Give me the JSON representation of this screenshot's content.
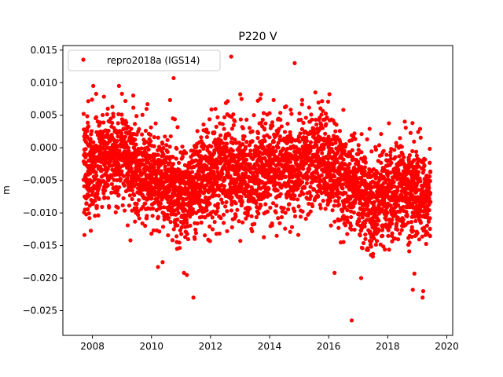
{
  "chart_data": {
    "type": "scatter",
    "title": "P220 V",
    "xlabel": "",
    "ylabel": "m",
    "xlim": [
      2007.0,
      2020.2
    ],
    "ylim": [
      -0.0288,
      0.0157
    ],
    "xticks": [
      2008,
      2010,
      2012,
      2014,
      2016,
      2018,
      2020
    ],
    "xtick_labels": [
      "2008",
      "2010",
      "2012",
      "2014",
      "2016",
      "2018",
      "2020"
    ],
    "yticks": [
      0.015,
      0.01,
      0.005,
      0.0,
      -0.005,
      -0.01,
      -0.015,
      -0.02,
      -0.025
    ],
    "ytick_labels": [
      "0.015",
      "0.010",
      "0.005",
      "0.000",
      "−0.005",
      "−0.010",
      "−0.015",
      "−0.020",
      "−0.025"
    ],
    "grid": false,
    "legend_position": "top-left",
    "series": [
      {
        "name": "repro2018a (IGS14)",
        "color": "#ff0000",
        "marker": "circle",
        "approx_daily_points": true,
        "trend_profile": {
          "x": [
            2007.7,
            2008.5,
            2009.0,
            2009.5,
            2010.0,
            2010.5,
            2011.0,
            2011.5,
            2012.0,
            2012.5,
            2013.0,
            2013.5,
            2014.0,
            2014.5,
            2015.0,
            2015.5,
            2016.0,
            2016.5,
            2017.0,
            2017.5,
            2018.0,
            2018.5,
            2019.0,
            2019.45
          ],
          "y": [
            -0.004,
            -0.001,
            -0.001,
            -0.003,
            -0.005,
            -0.005,
            -0.007,
            -0.006,
            -0.004,
            -0.003,
            -0.004,
            -0.004,
            -0.003,
            -0.003,
            -0.003,
            -0.002,
            -0.002,
            -0.005,
            -0.006,
            -0.009,
            -0.008,
            -0.006,
            -0.007,
            -0.008
          ]
        },
        "notable_points": [
          {
            "x": 2012.7,
            "y": 0.014
          },
          {
            "x": 2014.85,
            "y": 0.013
          },
          {
            "x": 2010.75,
            "y": 0.0107
          },
          {
            "x": 2011.42,
            "y": -0.023
          },
          {
            "x": 2016.78,
            "y": -0.0265
          },
          {
            "x": 2019.18,
            "y": -0.023
          },
          {
            "x": 2019.2,
            "y": -0.022
          },
          {
            "x": 2018.85,
            "y": -0.0218
          },
          {
            "x": 2010.22,
            "y": -0.0183
          },
          {
            "x": 2011.1,
            "y": -0.0192
          },
          {
            "x": 2016.2,
            "y": -0.0192
          },
          {
            "x": 2017.1,
            "y": -0.02
          },
          {
            "x": 2009.0,
            "y": 0.0083
          },
          {
            "x": 2013.05,
            "y": 0.0075
          },
          {
            "x": 2015.55,
            "y": 0.0085
          }
        ]
      }
    ]
  }
}
